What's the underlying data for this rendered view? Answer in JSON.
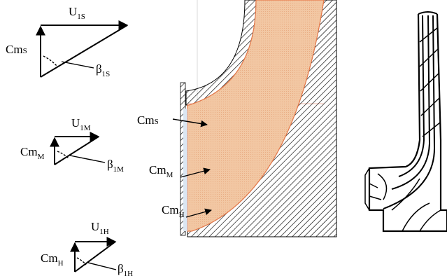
{
  "figure": {
    "triangles": [
      {
        "id": "shroud",
        "u_main": "U",
        "u_sub": "1S",
        "cm_main": "Cm",
        "cm_sub": "S",
        "beta_main": "β",
        "beta_sub": "1S"
      },
      {
        "id": "mid",
        "u_main": "U",
        "u_sub": "1M",
        "cm_main": "Cm",
        "cm_sub": "M",
        "beta_main": "β",
        "beta_sub": "1M"
      },
      {
        "id": "hub",
        "u_main": "U",
        "u_sub": "1H",
        "cm_main": "Cm",
        "cm_sub": "H",
        "beta_main": "β",
        "beta_sub": "1H"
      }
    ],
    "meridional": {
      "labels": [
        {
          "id": "shroud",
          "main": "Cm",
          "sub": "S"
        },
        {
          "id": "mid",
          "main": "Cm",
          "sub": "M"
        },
        {
          "id": "hub",
          "main": "Cm",
          "sub": "H"
        }
      ]
    },
    "colors": {
      "flow_fill": "#f2c7a3",
      "flow_edge": "#e87a4a",
      "hatch": "#000000",
      "inlet_tint": "#dbe6f2"
    }
  }
}
